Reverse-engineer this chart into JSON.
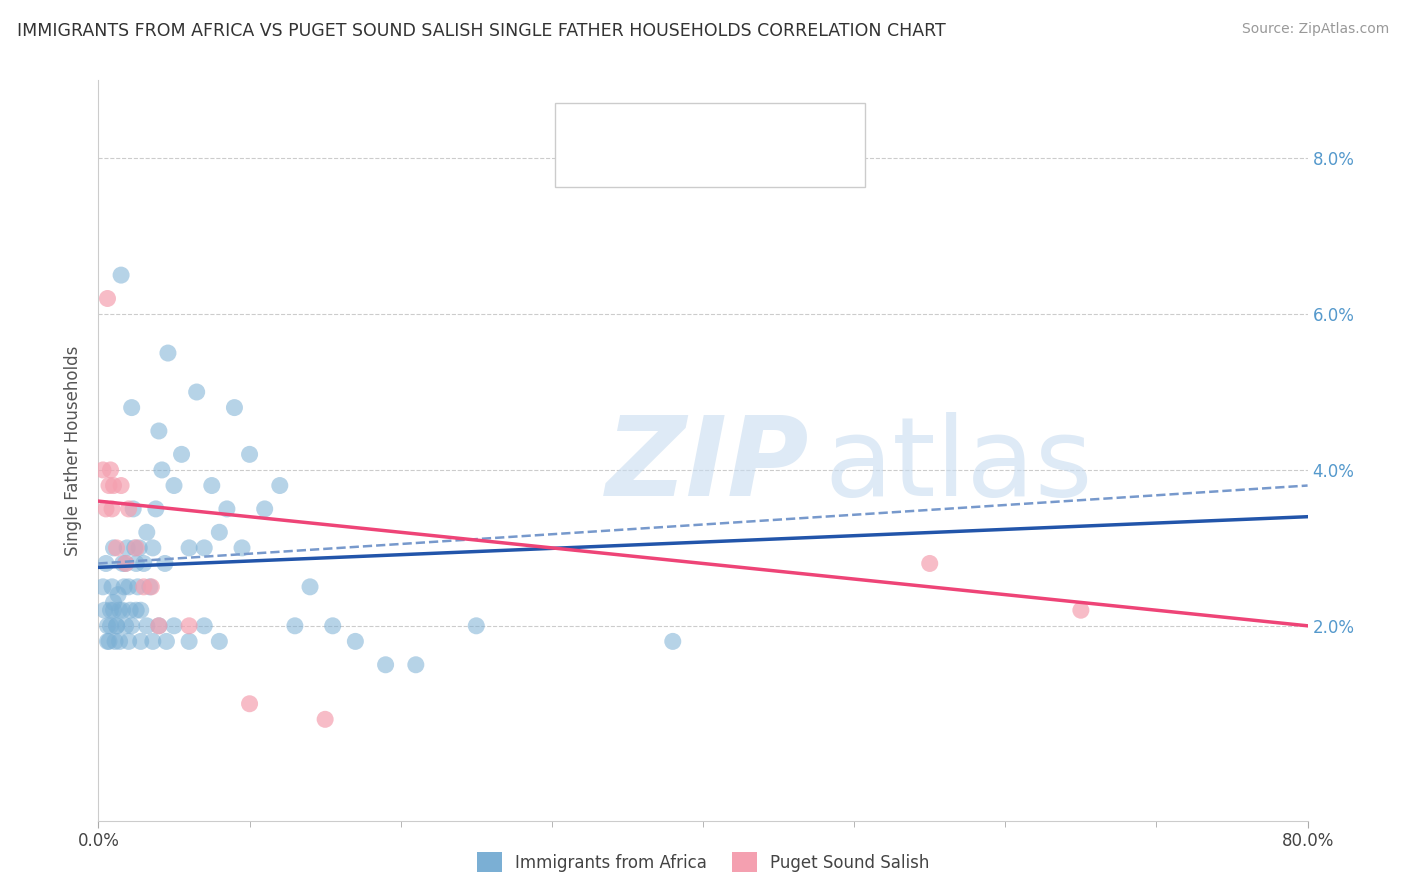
{
  "title": "IMMIGRANTS FROM AFRICA VS PUGET SOUND SALISH SINGLE FATHER HOUSEHOLDS CORRELATION CHART",
  "source": "Source: ZipAtlas.com",
  "ylabel": "Single Father Households",
  "xlim": [
    0,
    0.8
  ],
  "ylim": [
    -0.005,
    0.09
  ],
  "yticks": [
    0.02,
    0.04,
    0.06,
    0.08
  ],
  "ytick_labels": [
    "2.0%",
    "4.0%",
    "6.0%",
    "8.0%"
  ],
  "blue_color": "#7BAFD4",
  "pink_color": "#F4A0B0",
  "blue_line_color": "#2255AA",
  "pink_line_color": "#EE4477",
  "dashed_line_color": "#7799CC",
  "blue_trend_x": [
    0.0,
    0.8
  ],
  "blue_trend_y": [
    0.0275,
    0.034
  ],
  "pink_trend_x": [
    0.0,
    0.8
  ],
  "pink_trend_y": [
    0.036,
    0.02
  ],
  "dashed_trend_x": [
    0.0,
    0.8
  ],
  "dashed_trend_y": [
    0.028,
    0.038
  ],
  "blue_scatter_x": [
    0.003,
    0.004,
    0.005,
    0.006,
    0.007,
    0.008,
    0.009,
    0.01,
    0.01,
    0.011,
    0.012,
    0.013,
    0.014,
    0.015,
    0.016,
    0.017,
    0.018,
    0.019,
    0.02,
    0.021,
    0.022,
    0.023,
    0.024,
    0.025,
    0.026,
    0.027,
    0.028,
    0.03,
    0.032,
    0.034,
    0.036,
    0.038,
    0.04,
    0.042,
    0.044,
    0.046,
    0.05,
    0.055,
    0.06,
    0.065,
    0.07,
    0.075,
    0.08,
    0.085,
    0.09,
    0.095,
    0.1,
    0.11,
    0.12,
    0.13,
    0.14,
    0.155,
    0.17,
    0.19,
    0.21,
    0.006,
    0.008,
    0.01,
    0.012,
    0.014,
    0.016,
    0.018,
    0.02,
    0.022,
    0.025,
    0.028,
    0.032,
    0.036,
    0.04,
    0.045,
    0.05,
    0.06,
    0.07,
    0.08,
    0.25,
    0.38
  ],
  "blue_scatter_y": [
    0.025,
    0.022,
    0.028,
    0.02,
    0.018,
    0.022,
    0.025,
    0.023,
    0.03,
    0.018,
    0.02,
    0.024,
    0.022,
    0.065,
    0.028,
    0.025,
    0.028,
    0.03,
    0.025,
    0.022,
    0.048,
    0.035,
    0.03,
    0.028,
    0.025,
    0.03,
    0.022,
    0.028,
    0.032,
    0.025,
    0.03,
    0.035,
    0.045,
    0.04,
    0.028,
    0.055,
    0.038,
    0.042,
    0.03,
    0.05,
    0.03,
    0.038,
    0.032,
    0.035,
    0.048,
    0.03,
    0.042,
    0.035,
    0.038,
    0.02,
    0.025,
    0.02,
    0.018,
    0.015,
    0.015,
    0.018,
    0.02,
    0.022,
    0.02,
    0.018,
    0.022,
    0.02,
    0.018,
    0.02,
    0.022,
    0.018,
    0.02,
    0.018,
    0.02,
    0.018,
    0.02,
    0.018,
    0.02,
    0.018,
    0.02,
    0.018
  ],
  "pink_scatter_x": [
    0.003,
    0.005,
    0.006,
    0.007,
    0.008,
    0.009,
    0.01,
    0.012,
    0.015,
    0.018,
    0.02,
    0.025,
    0.03,
    0.035,
    0.04,
    0.06,
    0.1,
    0.15,
    0.55,
    0.65
  ],
  "pink_scatter_y": [
    0.04,
    0.035,
    0.062,
    0.038,
    0.04,
    0.035,
    0.038,
    0.03,
    0.038,
    0.028,
    0.035,
    0.03,
    0.025,
    0.025,
    0.02,
    0.02,
    0.01,
    0.008,
    0.028,
    0.022
  ]
}
